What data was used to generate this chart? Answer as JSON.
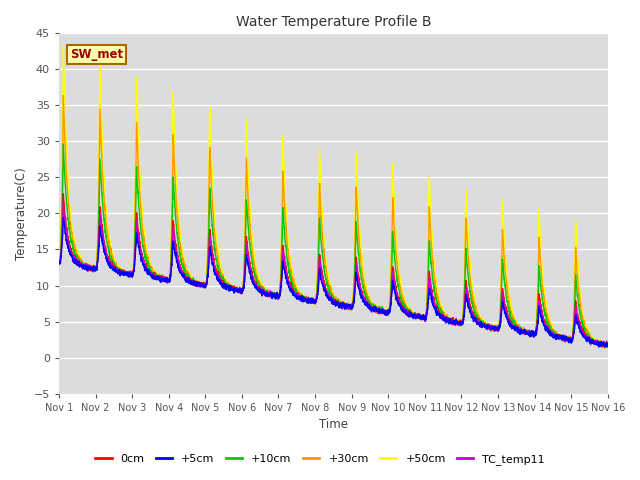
{
  "title": "Water Temperature Profile B",
  "xlabel": "Time",
  "ylabel": "Temperature(C)",
  "ylim": [
    -5,
    45
  ],
  "yticks": [
    -5,
    0,
    5,
    10,
    15,
    20,
    25,
    30,
    35,
    40,
    45
  ],
  "xlim": [
    0,
    15
  ],
  "xtick_labels": [
    "Nov 1",
    "Nov 2",
    "Nov 3",
    "Nov 4",
    "Nov 5",
    "Nov 6",
    "Nov 7",
    "Nov 8",
    "Nov 9",
    "Nov 10",
    "Nov 11",
    "Nov 12",
    "Nov 13",
    "Nov 14",
    "Nov 15",
    "Nov 16"
  ],
  "bg_color": "#dcdcdc",
  "fig_color": "#ffffff",
  "annotation": "SW_met",
  "series_colors": [
    "#ff0000",
    "#0000ff",
    "#00cc00",
    "#ff9900",
    "#ffff00",
    "#cc00cc"
  ],
  "series_labels": [
    "0cm",
    "+5cm",
    "+10cm",
    "+30cm",
    "+50cm",
    "TC_temp11"
  ],
  "linewidth": 1.0,
  "n_points": 3000
}
